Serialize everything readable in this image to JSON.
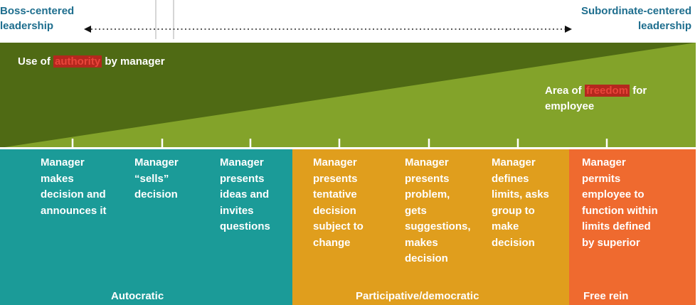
{
  "top_labels": {
    "left": "Boss-centered\nleadership",
    "right": "Subordinate-centered\nleadership"
  },
  "triangle": {
    "authority": {
      "prefix": "Use of ",
      "highlight": "authority",
      "suffix": " by manager"
    },
    "freedom": {
      "prefix": "Area of ",
      "highlight": "freedom",
      "suffix": " for employee"
    }
  },
  "colors": {
    "dark_green": "#4f6a14",
    "light_green": "#83a32a",
    "teal": "#1b9b98",
    "gold": "#e09e1d",
    "orange": "#ef6a2f",
    "highlight_red": "#b5271e",
    "blue_text": "#1e6e8e"
  },
  "columns": [
    "Manager\nmakes\ndecision and\nannounces it",
    "Manager\n“sells”\ndecision",
    "Manager\npresents\nideas and\ninvites\nquestions",
    "Manager\npresents\ntentative\ndecision\nsubject to\nchange",
    "Manager\npresents\nproblem,\ngets\nsuggestions,\nmakes\ndecision",
    "Manager\ndefines\nlimits, asks\ngroup to\nmake\ndecision",
    "Manager\npermits\nemployee to\nfunction within\nlimits defined\nby superior"
  ],
  "styles": {
    "autocratic": "Autocratic",
    "participative": "Participative/democratic",
    "free_rein": "Free rein"
  }
}
